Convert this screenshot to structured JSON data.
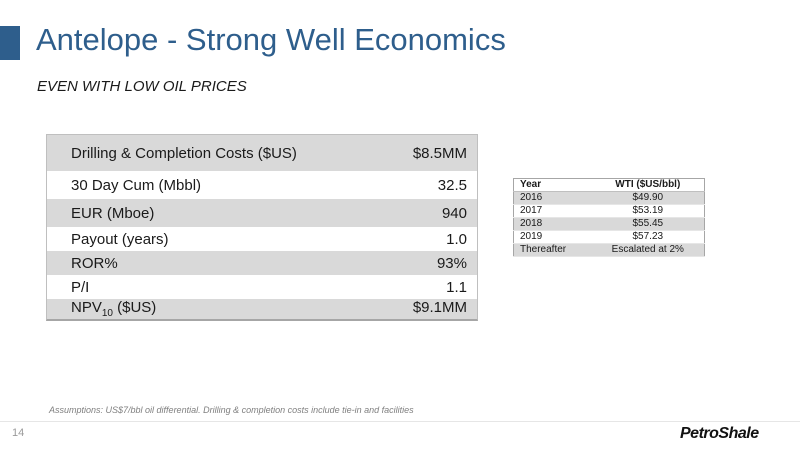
{
  "slide": {
    "title": "Antelope - Strong Well Economics",
    "subtitle": "EVEN WITH LOW OIL PRICES",
    "page_number": "14",
    "logo_text": "PetroShale",
    "assumptions": "Assumptions: US$7/bbl oil differential.  Drilling & completion costs include tie-in and facilities"
  },
  "metrics": [
    {
      "label": "Drilling & Completion Costs ($US)",
      "value": "$8.5MM"
    },
    {
      "label": "30 Day Cum (Mbbl)",
      "value": "32.5"
    },
    {
      "label": "EUR (Mboe)",
      "value": "940"
    },
    {
      "label": "Payout (years)",
      "value": "1.0"
    },
    {
      "label": "ROR%",
      "value": "93%"
    },
    {
      "label": "P/I",
      "value": "1.1"
    },
    {
      "label_main": "NPV",
      "label_sub": "10",
      "label_tail": " ($US)",
      "value": "$9.1MM"
    }
  ],
  "wti_table": {
    "headers": [
      "Year",
      "WTI ($US/bbl)"
    ],
    "rows": [
      [
        "2016",
        "$49.90"
      ],
      [
        "2017",
        "$53.19"
      ],
      [
        "2018",
        "$55.45"
      ],
      [
        "2019",
        "$57.23"
      ],
      [
        "Thereafter",
        "Escalated at 2%"
      ]
    ]
  },
  "colors": {
    "title": "#2e5e8c",
    "accent_bar": "#2e5e8c",
    "shaded_row": "#d9d9d9"
  }
}
